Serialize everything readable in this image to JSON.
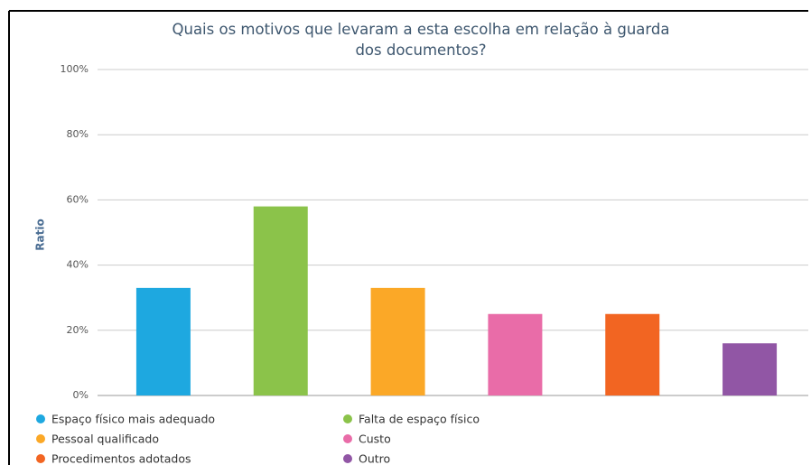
{
  "chart_data": {
    "type": "bar",
    "title": "Quais os motivos que levaram a esta escolha em relação à guarda dos documentos?",
    "y_label": "Ratio",
    "categories": [
      "Espaço físico mais adequado",
      "Falta de espaço físico",
      "Pessoal qualificado",
      "Custo",
      "Procedimentos adotados",
      "Outro"
    ],
    "values": [
      33,
      58,
      33,
      25,
      25,
      16
    ],
    "colors": [
      "#1ea8e0",
      "#8bc34a",
      "#fba827",
      "#e96ca8",
      "#f26522",
      "#9156a5"
    ],
    "ylim": [
      0,
      100
    ],
    "yticks": [
      {
        "value": 0,
        "label": "0%"
      },
      {
        "value": 20,
        "label": "20%"
      },
      {
        "value": 40,
        "label": "40%"
      },
      {
        "value": 60,
        "label": "60%"
      },
      {
        "value": 80,
        "label": "80%"
      },
      {
        "value": 100,
        "label": "100%"
      }
    ],
    "grid": true
  }
}
